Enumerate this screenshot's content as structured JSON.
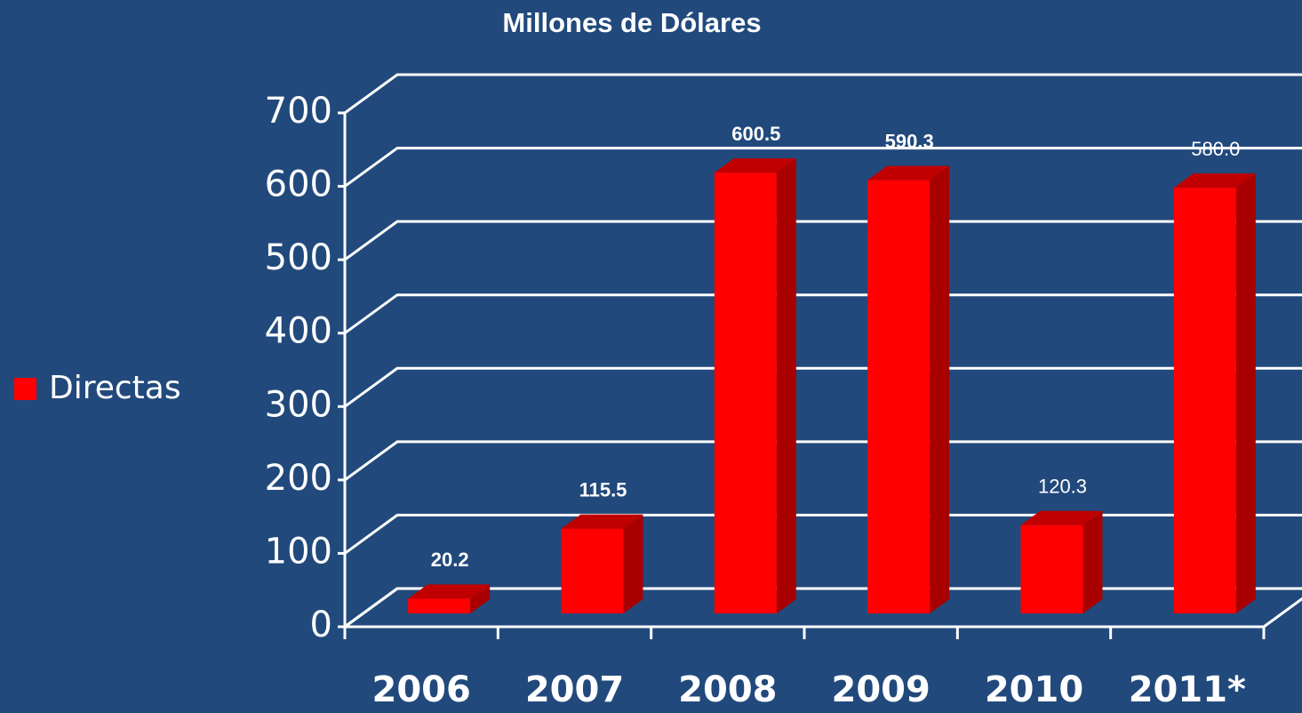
{
  "chart_data": {
    "type": "bar3d",
    "title": "Millones de Dólares",
    "categories": [
      "2006",
      "2007",
      "2008",
      "2009",
      "2010",
      "2011*"
    ],
    "series": [
      {
        "name": "Directas",
        "color": "#ff0000",
        "values": [
          20.2,
          115.5,
          600.5,
          590.3,
          120.3,
          580.0
        ],
        "value_labels": [
          "20.2",
          "115.5",
          "600.5",
          "590.3",
          "120.3",
          "580.0"
        ]
      }
    ],
    "ylim": [
      0,
      700
    ],
    "yticks": [
      0,
      100,
      200,
      300,
      400,
      500,
      600,
      700
    ],
    "grid": true,
    "legend": "left"
  }
}
